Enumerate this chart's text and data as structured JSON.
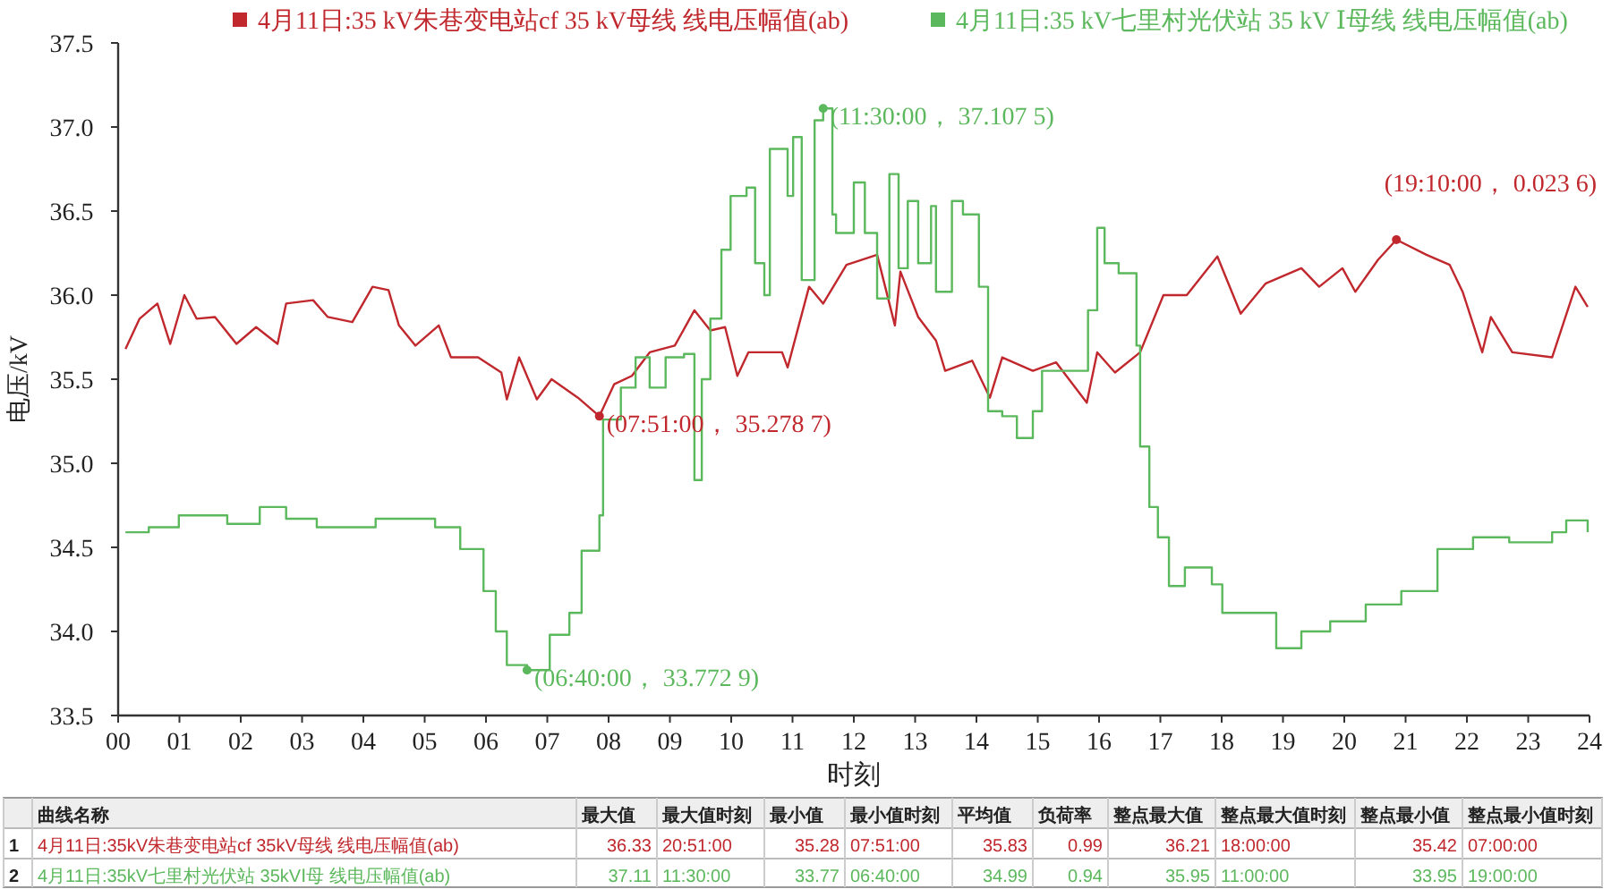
{
  "chart_data": {
    "type": "line",
    "xlabel": "时刻",
    "ylabel": "电压/kV",
    "xlim": [
      0,
      24
    ],
    "ylim": [
      33.5,
      37.5
    ],
    "xticks": [
      {
        "value": 0,
        "label": "00"
      },
      {
        "value": 1,
        "label": "01"
      },
      {
        "value": 2,
        "label": "02"
      },
      {
        "value": 3,
        "label": "03"
      },
      {
        "value": 4,
        "label": "04"
      },
      {
        "value": 5,
        "label": "05"
      },
      {
        "value": 6,
        "label": "06"
      },
      {
        "value": 7,
        "label": "07"
      },
      {
        "value": 8,
        "label": "08"
      },
      {
        "value": 9,
        "label": "09"
      },
      10,
      11,
      12,
      13,
      14,
      15,
      16,
      17,
      18,
      19,
      20,
      21,
      22,
      23,
      24
    ],
    "yticks": [
      33.5,
      {
        "value": 34,
        "label": "34.0"
      },
      34.5,
      {
        "value": 35,
        "label": "35.0"
      },
      35.5,
      {
        "value": 36,
        "label": "36.0"
      },
      36.5,
      {
        "value": 37,
        "label": "37.0"
      },
      37.5
    ],
    "legend": "top",
    "grid": false,
    "series": [
      {
        "name": "4月11日:35 kV朱巷变电站cf 35 kV母线 线电压幅值(ab)",
        "color": "#c0282d",
        "x": [
          0.12,
          0.35,
          0.64,
          0.85,
          1.08,
          1.28,
          1.58,
          1.93,
          2.25,
          2.6,
          2.74,
          3.18,
          3.42,
          3.82,
          4.15,
          4.41,
          4.58,
          4.85,
          5.23,
          5.43,
          5.87,
          6.25,
          6.34,
          6.54,
          6.83,
          7.07,
          7.5,
          7.85,
          8.09,
          8.38,
          8.67,
          9.08,
          9.4,
          9.66,
          9.9,
          10.1,
          10.28,
          10.83,
          10.92,
          11.27,
          11.5,
          11.88,
          12.38,
          12.67,
          12.76,
          13.05,
          13.34,
          13.49,
          13.93,
          14.22,
          14.42,
          14.92,
          15.3,
          15.8,
          15.97,
          16.26,
          16.67,
          17.05,
          17.43,
          17.93,
          18.31,
          18.72,
          19.3,
          19.59,
          19.97,
          20.18,
          20.55,
          20.85,
          21.34,
          21.72,
          21.93,
          22.25,
          22.39,
          22.74,
          23.39,
          23.77,
          23.97
        ],
        "values": [
          35.68,
          35.86,
          35.95,
          35.71,
          36.0,
          35.86,
          35.87,
          35.71,
          35.81,
          35.71,
          35.95,
          35.97,
          35.87,
          35.84,
          36.05,
          36.03,
          35.82,
          35.7,
          35.82,
          35.63,
          35.63,
          35.54,
          35.38,
          35.63,
          35.38,
          35.5,
          35.39,
          35.28,
          35.47,
          35.52,
          35.66,
          35.7,
          35.91,
          35.79,
          35.81,
          35.52,
          35.66,
          35.66,
          35.57,
          36.05,
          35.95,
          36.18,
          36.24,
          35.82,
          36.14,
          35.87,
          35.73,
          35.55,
          35.61,
          35.39,
          35.63,
          35.55,
          35.6,
          35.36,
          35.66,
          35.54,
          35.66,
          36.0,
          36.0,
          36.23,
          35.89,
          36.07,
          36.16,
          36.05,
          36.16,
          36.02,
          36.21,
          36.33,
          36.24,
          36.18,
          36.02,
          35.66,
          35.87,
          35.66,
          35.63,
          36.05,
          35.93
        ]
      },
      {
        "name": "4月11日:35 kV七里村光伏站 35 kV Ⅰ母线 线电压幅值(ab)",
        "color": "#5cb85c",
        "type": "step",
        "x": [
          0.12,
          0.5,
          0.99,
          1.78,
          2.31,
          2.74,
          3.24,
          4.2,
          5.17,
          5.58,
          5.96,
          6.16,
          6.34,
          6.67,
          7.04,
          7.36,
          7.56,
          7.85,
          7.91,
          8.2,
          8.44,
          8.67,
          8.93,
          9.23,
          9.4,
          9.52,
          9.66,
          9.84,
          9.99,
          10.25,
          10.39,
          10.54,
          10.63,
          10.92,
          11.01,
          11.15,
          11.36,
          11.5,
          11.65,
          11.71,
          12.0,
          12.18,
          12.38,
          12.58,
          12.73,
          12.88,
          13.05,
          13.26,
          13.34,
          13.6,
          13.78,
          14.04,
          14.19,
          14.42,
          14.66,
          14.92,
          15.07,
          15.65,
          15.82,
          15.97,
          16.09,
          16.32,
          16.61,
          16.67,
          16.82,
          16.96,
          17.14,
          17.4,
          17.84,
          18.01,
          18.42,
          18.89,
          19.3,
          19.77,
          20.35,
          20.93,
          21.52,
          22.1,
          22.69,
          23.39,
          23.62,
          23.97
        ],
        "values": [
          34.59,
          34.62,
          34.69,
          34.64,
          34.74,
          34.67,
          34.62,
          34.67,
          34.62,
          34.49,
          34.24,
          34.0,
          33.8,
          33.77,
          33.98,
          34.11,
          34.48,
          34.69,
          35.26,
          35.45,
          35.63,
          35.45,
          35.63,
          35.65,
          34.9,
          35.5,
          35.86,
          36.27,
          36.59,
          36.64,
          36.19,
          36.0,
          36.87,
          36.59,
          36.94,
          36.09,
          37.04,
          37.11,
          36.48,
          36.37,
          36.67,
          36.37,
          35.98,
          36.72,
          36.16,
          36.56,
          36.19,
          36.53,
          36.02,
          36.56,
          36.48,
          36.05,
          35.31,
          35.28,
          35.15,
          35.31,
          35.55,
          35.55,
          35.91,
          36.4,
          36.19,
          36.13,
          35.7,
          35.1,
          34.74,
          34.56,
          34.27,
          34.38,
          34.28,
          34.11,
          34.11,
          33.9,
          34.0,
          34.06,
          34.16,
          34.24,
          34.49,
          34.56,
          34.53,
          34.59,
          34.66,
          34.59
        ]
      }
    ],
    "annotations": [
      {
        "text": "(07:51:00，  35.278 7)",
        "x": 7.85,
        "y": 35.28
      },
      {
        "text": "(06:40:00，  33.772 9)",
        "x": 6.67,
        "y": 33.77
      },
      {
        "text": "(11:30:00，  37.107 5)",
        "x": 11.5,
        "y": 37.11
      },
      {
        "text": "(19:10:00，  0.023 6)",
        "x": 20.85,
        "y": 36.33
      },
      "曲线名称",
      "最大值",
      "最大值时刻",
      "最小值",
      "最小值时刻",
      "平均值",
      "负荷率",
      "整点最大值",
      "整点最大值时刻",
      "整点最小值",
      "整点最小值时刻",
      "1",
      "4月11日:35kV朱巷变电站cf 35kV母线 线电压幅值(ab)",
      "36.33",
      "20:51:00",
      "35.28",
      "07:51:00",
      "35.83",
      "0.99",
      "36.21",
      "18:00:00",
      "35.42",
      "07:00:00",
      "2",
      "4月11日:35kV七里村光伏站 35kVⅠ母 线电压幅值(ab)",
      "37.11",
      "11:30:00",
      "33.77",
      "06:40:00",
      "34.99",
      "0.94",
      "35.95",
      "11:00:00",
      "33.95",
      "19:00:00"
    ]
  }
}
